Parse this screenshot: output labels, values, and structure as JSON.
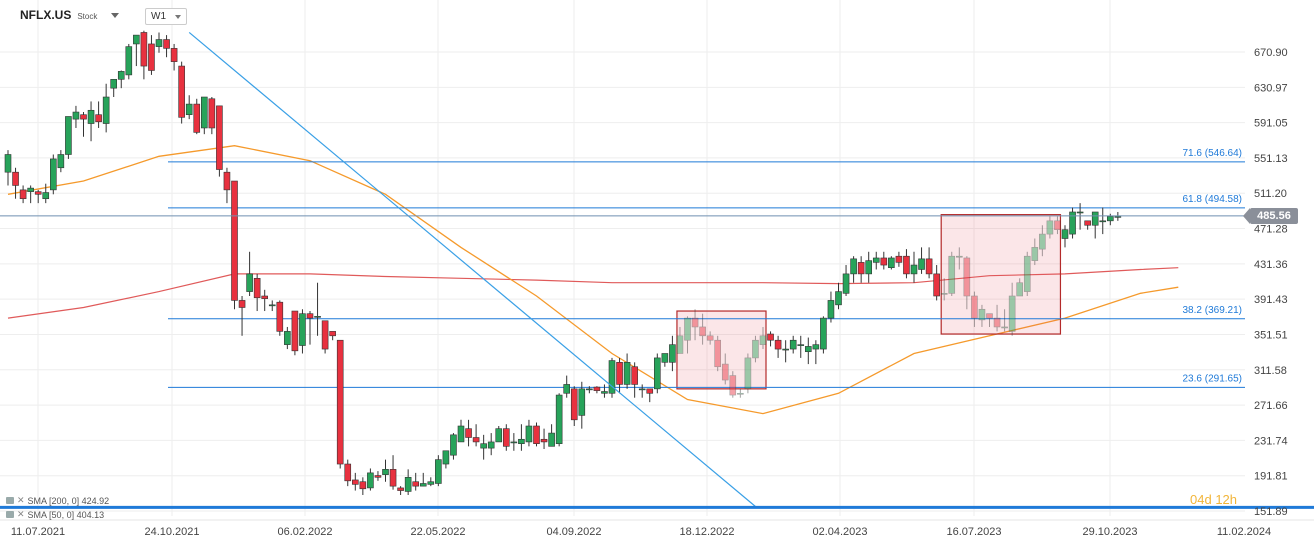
{
  "header": {
    "symbol": "NFLX.US",
    "instrument_type": "Stock",
    "timeframe": "W1"
  },
  "indicators": [
    {
      "label": "SMA [200, 0] 424.92",
      "color": "#e05a5a"
    },
    {
      "label": "SMA [50, 0] 404.13",
      "color": "#f59a2c"
    }
  ],
  "countdown": {
    "days": "04",
    "day_unit": "d",
    "hours": "12",
    "hour_unit": "h"
  },
  "current_price": "485.56",
  "colors": {
    "bull": "#27a35a",
    "bear": "#e8313f",
    "grid": "#eeeeee",
    "fib": "#1f7ad8",
    "trend": "#3aa0e6",
    "sma200": "#e05a5a",
    "sma50": "#f59a2c",
    "box": "#b42a2a"
  },
  "chart_data": {
    "type": "candlestick",
    "ylim": [
      151.89,
      700
    ],
    "y_ticks": [
      "670.90",
      "630.97",
      "591.05",
      "551.13",
      "511.20",
      "471.28",
      "431.36",
      "391.43",
      "351.51",
      "311.58",
      "271.66",
      "231.74",
      "191.81",
      "151.89"
    ],
    "y_tick_values": [
      670.9,
      630.97,
      591.05,
      551.13,
      511.2,
      471.28,
      431.36,
      391.43,
      351.51,
      311.58,
      271.66,
      231.74,
      191.81,
      151.89
    ],
    "x_ticks": [
      "11.07.2021",
      "24.10.2021",
      "06.02.2022",
      "22.05.2022",
      "04.09.2022",
      "18.12.2022",
      "02.04.2023",
      "16.07.2023",
      "29.10.2023",
      "11.02.2024"
    ],
    "fib_levels": [
      {
        "label": "71.6 (546.64)",
        "value": 546.64
      },
      {
        "label": "61.8 (494.58)",
        "value": 494.58
      },
      {
        "label": "38.2 (369.21)",
        "value": 369.21
      },
      {
        "label": "23.6 (291.65)",
        "value": 291.65
      }
    ],
    "current_price": 485.56,
    "bottom_line": 156,
    "trendline": {
      "from": [
        24,
        693
      ],
      "to": [
        99,
        157
      ]
    },
    "boxes": [
      {
        "from": 89,
        "to": 100,
        "top": 378,
        "bottom": 290
      },
      {
        "from": 124,
        "to": 139,
        "top": 487,
        "bottom": 352
      }
    ],
    "sma200": [
      [
        0,
        370
      ],
      [
        10,
        382
      ],
      [
        20,
        400
      ],
      [
        30,
        420
      ],
      [
        40,
        420
      ],
      [
        50,
        417
      ],
      [
        60,
        415
      ],
      [
        70,
        413
      ],
      [
        80,
        410
      ],
      [
        90,
        410
      ],
      [
        100,
        410
      ],
      [
        110,
        409
      ],
      [
        120,
        410
      ],
      [
        130,
        418
      ],
      [
        140,
        420
      ],
      [
        150,
        425
      ],
      [
        155,
        427
      ]
    ],
    "sma50": [
      [
        0,
        510
      ],
      [
        10,
        525
      ],
      [
        20,
        553
      ],
      [
        30,
        565
      ],
      [
        40,
        548
      ],
      [
        50,
        510
      ],
      [
        60,
        450
      ],
      [
        70,
        395
      ],
      [
        80,
        330
      ],
      [
        90,
        278
      ],
      [
        100,
        262
      ],
      [
        110,
        285
      ],
      [
        120,
        330
      ],
      [
        130,
        350
      ],
      [
        140,
        370
      ],
      [
        150,
        398
      ],
      [
        155,
        405
      ]
    ],
    "candles": [
      [
        535,
        555,
        560,
        520
      ],
      [
        535,
        520,
        540,
        505
      ],
      [
        515,
        505,
        520,
        500
      ],
      [
        513,
        517,
        520,
        500
      ],
      [
        513,
        510,
        515,
        500
      ],
      [
        505,
        512,
        522,
        500
      ],
      [
        515,
        550,
        555,
        510
      ],
      [
        540,
        555,
        560,
        535
      ],
      [
        555,
        598,
        598,
        550
      ],
      [
        595,
        603,
        610,
        585
      ],
      [
        600,
        595,
        603,
        575
      ],
      [
        590,
        605,
        615,
        570
      ],
      [
        600,
        592,
        615,
        585
      ],
      [
        590,
        620,
        635,
        580
      ],
      [
        630,
        640,
        640,
        620
      ],
      [
        640,
        649,
        650,
        630
      ],
      [
        645,
        677,
        680,
        640
      ],
      [
        680,
        690,
        690,
        655
      ],
      [
        693,
        655,
        695,
        640
      ],
      [
        680,
        650,
        690,
        645
      ],
      [
        677,
        685,
        693,
        670
      ],
      [
        685,
        675,
        690,
        665
      ],
      [
        675,
        660,
        680,
        650
      ],
      [
        655,
        597,
        660,
        590
      ],
      [
        600,
        612,
        622,
        595
      ],
      [
        612,
        580,
        618,
        578
      ],
      [
        585,
        620,
        620,
        578
      ],
      [
        618,
        585,
        620,
        578
      ],
      [
        610,
        538,
        610,
        530
      ],
      [
        535,
        515,
        540,
        500
      ],
      [
        525,
        390,
        525,
        380
      ],
      [
        390,
        382,
        395,
        350
      ],
      [
        400,
        420,
        445,
        395
      ],
      [
        415,
        393,
        420,
        378
      ],
      [
        395,
        392,
        402,
        378
      ],
      [
        385,
        385,
        390,
        378
      ],
      [
        388,
        355,
        390,
        350
      ],
      [
        340,
        355,
        360,
        335
      ],
      [
        378,
        333,
        378,
        328
      ],
      [
        339,
        375,
        380,
        330
      ],
      [
        375,
        370,
        378,
        340
      ],
      [
        372,
        372,
        410,
        350
      ],
      [
        367,
        335,
        367,
        330
      ],
      [
        355,
        350,
        350,
        345
      ],
      [
        345,
        205,
        345,
        200
      ],
      [
        205,
        186,
        210,
        180
      ],
      [
        187,
        182,
        195,
        175
      ],
      [
        185,
        177,
        190,
        170
      ],
      [
        178,
        195,
        200,
        175
      ],
      [
        192,
        190,
        197,
        186
      ],
      [
        193,
        199,
        210,
        185
      ],
      [
        199,
        180,
        215,
        176
      ],
      [
        178,
        175,
        180,
        170
      ],
      [
        174,
        190,
        199,
        170
      ],
      [
        185,
        180,
        195,
        175
      ],
      [
        180,
        183,
        195,
        180
      ],
      [
        182,
        185,
        190,
        180
      ],
      [
        183,
        210,
        215,
        180
      ],
      [
        205,
        220,
        220,
        200
      ],
      [
        215,
        238,
        240,
        210
      ],
      [
        230,
        248,
        255,
        230
      ],
      [
        245,
        235,
        255,
        225
      ],
      [
        235,
        230,
        250,
        225
      ],
      [
        223,
        228,
        238,
        210
      ],
      [
        223,
        230,
        240,
        215
      ],
      [
        230,
        245,
        248,
        230
      ],
      [
        245,
        225,
        250,
        220
      ],
      [
        230,
        230,
        240,
        220
      ],
      [
        228,
        233,
        250,
        220
      ],
      [
        230,
        248,
        255,
        225
      ],
      [
        248,
        228,
        252,
        225
      ],
      [
        233,
        230,
        245,
        222
      ],
      [
        225,
        240,
        250,
        225
      ],
      [
        228,
        283,
        285,
        225
      ],
      [
        285,
        295,
        305,
        280
      ],
      [
        290,
        255,
        293,
        248
      ],
      [
        260,
        290,
        298,
        245
      ],
      [
        290,
        290,
        293,
        285
      ],
      [
        292,
        288,
        293,
        285
      ],
      [
        285,
        287,
        295,
        280
      ],
      [
        285,
        322,
        325,
        280
      ],
      [
        320,
        295,
        325,
        285
      ],
      [
        295,
        320,
        330,
        290
      ],
      [
        315,
        295,
        320,
        280
      ],
      [
        290,
        290,
        295,
        280
      ],
      [
        290,
        285,
        290,
        275
      ],
      [
        290,
        325,
        330,
        285
      ],
      [
        320,
        330,
        330,
        315
      ],
      [
        320,
        340,
        350,
        310
      ],
      [
        330,
        350,
        360,
        330
      ],
      [
        345,
        370,
        372,
        330
      ],
      [
        370,
        360,
        380,
        345
      ],
      [
        360,
        350,
        375,
        340
      ],
      [
        350,
        345,
        355,
        340
      ],
      [
        345,
        315,
        350,
        310
      ],
      [
        318,
        300,
        330,
        295
      ],
      [
        305,
        283,
        310,
        280
      ],
      [
        285,
        285,
        290,
        280
      ],
      [
        290,
        325,
        330,
        285
      ],
      [
        325,
        345,
        350,
        320
      ],
      [
        340,
        350,
        360,
        335
      ],
      [
        352,
        345,
        355,
        338
      ],
      [
        345,
        335,
        350,
        325
      ],
      [
        335,
        335,
        345,
        320
      ],
      [
        335,
        345,
        350,
        330
      ],
      [
        340,
        340,
        350,
        325
      ],
      [
        332,
        338,
        348,
        318
      ],
      [
        335,
        340,
        345,
        318
      ],
      [
        335,
        370,
        372,
        330
      ],
      [
        370,
        390,
        400,
        365
      ],
      [
        385,
        400,
        410,
        380
      ],
      [
        398,
        420,
        430,
        395
      ],
      [
        420,
        437,
        440,
        410
      ],
      [
        433,
        420,
        440,
        410
      ],
      [
        420,
        435,
        445,
        410
      ],
      [
        433,
        438,
        445,
        425
      ],
      [
        438,
        430,
        445,
        425
      ],
      [
        427,
        438,
        440,
        425
      ],
      [
        440,
        433,
        445,
        428
      ],
      [
        440,
        420,
        448,
        415
      ],
      [
        420,
        430,
        445,
        410
      ],
      [
        425,
        437,
        450,
        420
      ],
      [
        437,
        420,
        450,
        415
      ],
      [
        420,
        395,
        430,
        390
      ],
      [
        398,
        398,
        415,
        390
      ],
      [
        398,
        440,
        445,
        395
      ],
      [
        440,
        440,
        450,
        425
      ],
      [
        438,
        395,
        440,
        380
      ],
      [
        395,
        370,
        400,
        360
      ],
      [
        368,
        380,
        385,
        360
      ],
      [
        375,
        370,
        375,
        360
      ],
      [
        370,
        360,
        385,
        355
      ],
      [
        360,
        360,
        380,
        355
      ],
      [
        355,
        395,
        410,
        350
      ],
      [
        395,
        410,
        415,
        400
      ],
      [
        400,
        440,
        445,
        395
      ],
      [
        435,
        450,
        460,
        430
      ],
      [
        448,
        465,
        475,
        440
      ],
      [
        465,
        480,
        485,
        460
      ],
      [
        480,
        470,
        485,
        465
      ],
      [
        460,
        470,
        475,
        450
      ],
      [
        465,
        490,
        495,
        460
      ],
      [
        490,
        490,
        500,
        470
      ],
      [
        480,
        475,
        480,
        470
      ],
      [
        475,
        490,
        490,
        460
      ],
      [
        480,
        480,
        495,
        465
      ],
      [
        480,
        485,
        488,
        475
      ],
      [
        485,
        485,
        490,
        480
      ]
    ]
  }
}
